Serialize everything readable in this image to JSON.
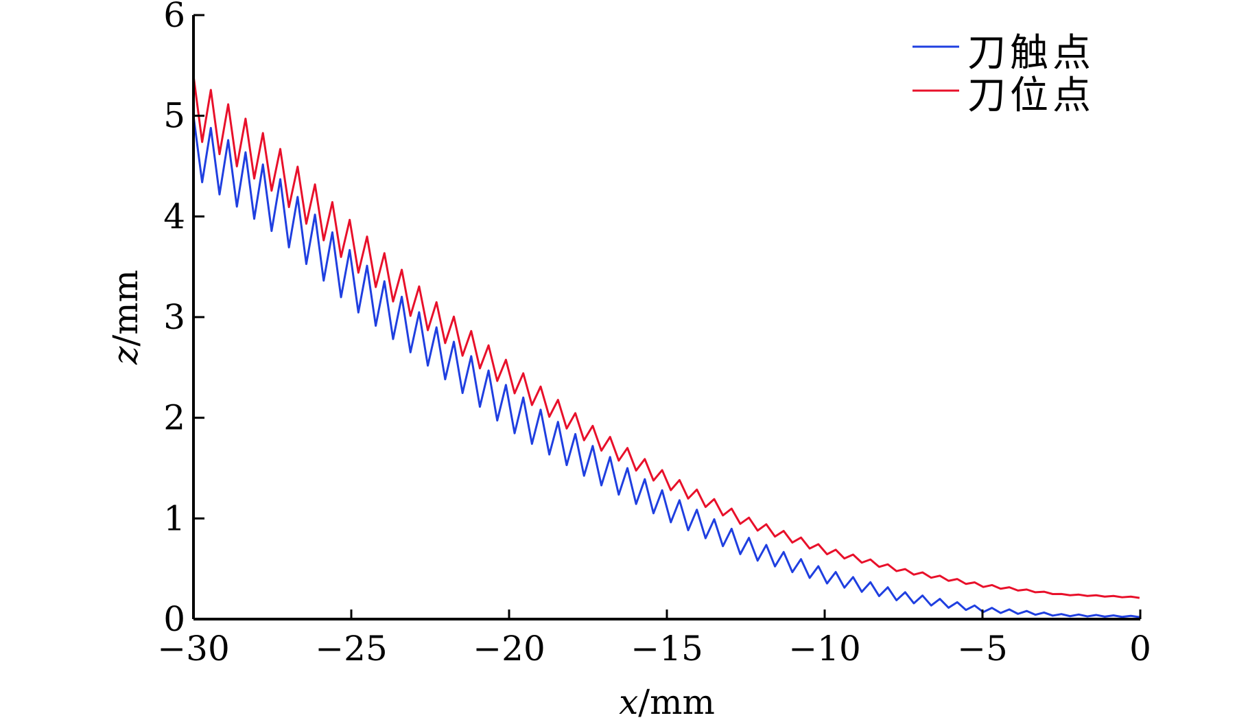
{
  "chart_data": {
    "type": "line",
    "title": "",
    "xlabel": {
      "var": "x",
      "unit": "/mm"
    },
    "ylabel": {
      "var": "z",
      "unit": "/mm"
    },
    "xlim": [
      -30,
      0
    ],
    "ylim": [
      0,
      6
    ],
    "xticks": [
      -30,
      -25,
      -20,
      -15,
      -10,
      -5,
      0
    ],
    "xtick_labels": [
      "−30",
      "−25",
      "−20",
      "−15",
      "−10",
      "−5",
      "0"
    ],
    "yticks": [
      0,
      1,
      2,
      3,
      4,
      5,
      6
    ],
    "ytick_labels": [
      "0",
      "1",
      "2",
      "3",
      "4",
      "5",
      "6"
    ],
    "grid": false,
    "legend_position": "top-right",
    "oscillation": {
      "period_mm": 0.55
    },
    "series": [
      {
        "name": "刀触点",
        "color": "#1f3fe0",
        "x": [
          -30,
          -27.5,
          -25,
          -22.5,
          -20,
          -17.5,
          -15,
          -12.5,
          -10,
          -7.5,
          -5,
          -2.5,
          0
        ],
        "y_upper": [
          5.0,
          4.45,
          3.65,
          2.95,
          2.3,
          1.75,
          1.25,
          0.82,
          0.5,
          0.27,
          0.12,
          0.05,
          0.03
        ],
        "y_lower": [
          4.4,
          3.85,
          3.1,
          2.5,
          1.88,
          1.4,
          0.98,
          0.62,
          0.36,
          0.17,
          0.07,
          0.03,
          0.02
        ]
      },
      {
        "name": "刀位点",
        "color": "#e8102a",
        "x": [
          -30,
          -27.5,
          -25,
          -22.5,
          -20,
          -17.5,
          -15,
          -12.5,
          -10,
          -7.5,
          -5,
          -2.5,
          0
        ],
        "y_upper": [
          5.4,
          4.75,
          3.95,
          3.2,
          2.55,
          1.95,
          1.45,
          1.02,
          0.72,
          0.5,
          0.35,
          0.25,
          0.22
        ],
        "y_lower": [
          4.8,
          4.25,
          3.5,
          2.85,
          2.28,
          1.75,
          1.3,
          0.92,
          0.65,
          0.46,
          0.32,
          0.24,
          0.21
        ]
      }
    ]
  }
}
